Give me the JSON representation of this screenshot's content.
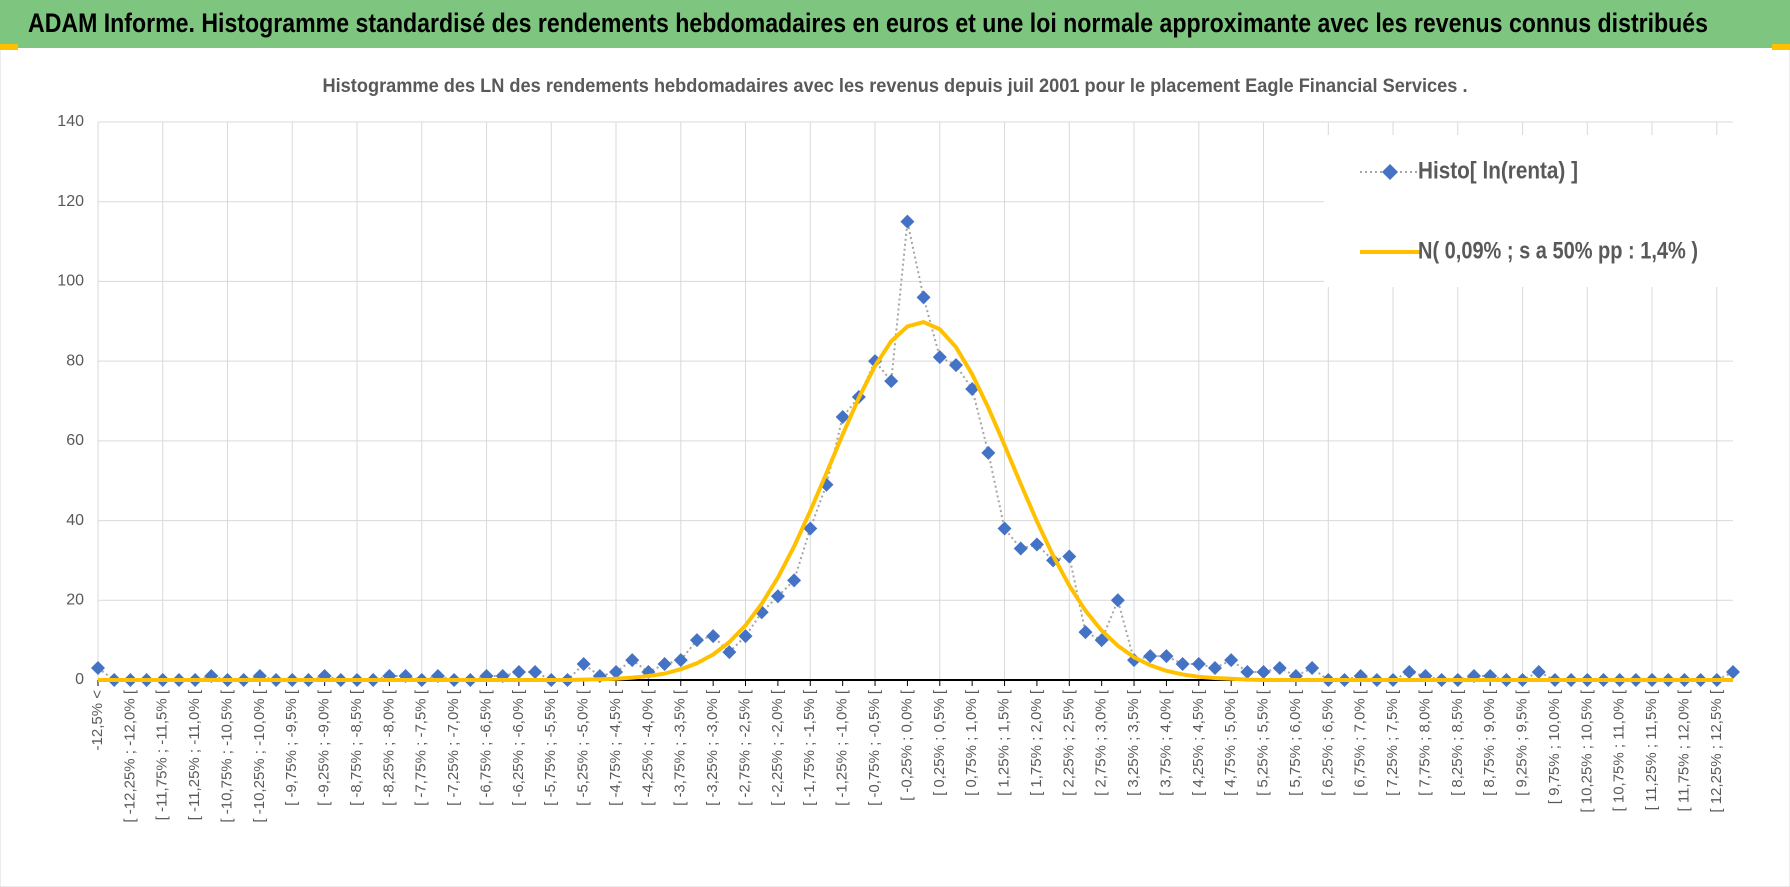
{
  "header": {
    "title": "ADAM Informe. Histogramme standardisé des rendements hebdomadaires en euros et une loi normale approximante avec les revenus connus distribués"
  },
  "chart_data": {
    "type": "line",
    "title": "Histogramme des LN des rendements hebdomadaires avec les revenus depuis juil 2001 pour le placement Eagle Financial Services .",
    "categories": [
      "-12,5% <",
      null,
      "[ -12,25% ; -12,0% [",
      null,
      "[ -11,75% ; -11,5% [",
      null,
      "[ -11,25% ; -11,0% [",
      null,
      "[ -10,75% ; -10,5% [",
      null,
      "[ -10,25% ; -10,0% [",
      null,
      "[ -9,75% ; -9,5% [",
      null,
      "[ -9,25% ; -9,0% [",
      null,
      "[ -8,75% ; -8,5% [",
      null,
      "[ -8,25% ; -8,0% [",
      null,
      "[ -7,75% ; -7,5% [",
      null,
      "[ -7,25% ; -7,0% [",
      null,
      "[ -6,75% ; -6,5% [",
      null,
      "[ -6,25% ; -6,0% [",
      null,
      "[ -5,75% ; -5,5% [",
      null,
      "[ -5,25% ; -5,0% [",
      null,
      "[ -4,75% ; -4,5% [",
      null,
      "[ -4,25% ; -4,0% [",
      null,
      "[ -3,75% ; -3,5% [",
      null,
      "[ -3,25% ; -3,0% [",
      null,
      "[ -2,75% ; -2,5% [",
      null,
      "[ -2,25% ; -2,0% [",
      null,
      "[ -1,75% ; -1,5% [",
      null,
      "[ -1,25% ; -1,0% [",
      null,
      "[ -0,75% ; -0,5% [",
      null,
      "[ -0,25% ; 0,0% [",
      null,
      "[ 0,25% ; 0,5% [",
      null,
      "[ 0,75% ; 1,0% [",
      null,
      "[ 1,25% ; 1,5% [",
      null,
      "[ 1,75% ; 2,0% [",
      null,
      "[ 2,25% ; 2,5% [",
      null,
      "[ 2,75% ; 3,0% [",
      null,
      "[ 3,25% ; 3,5% [",
      null,
      "[ 3,75% ; 4,0% [",
      null,
      "[ 4,25% ; 4,5% [",
      null,
      "[ 4,75% ; 5,0% [",
      null,
      "[ 5,25% ; 5,5% [",
      null,
      "[ 5,75% ; 6,0% [",
      null,
      "[ 6,25% ; 6,5% [",
      null,
      "[ 6,75% ; 7,0% [",
      null,
      "[ 7,25% ; 7,5% [",
      null,
      "[ 7,75% ; 8,0% [",
      null,
      "[ 8,25% ; 8,5% [",
      null,
      "[ 8,75% ; 9,0% [",
      null,
      "[ 9,25% ; 9,5% [",
      null,
      "[ 9,75% ; 10,0% [",
      null,
      "[ 10,25% ; 10,5% [",
      null,
      "[ 10,75% ; 11,0% [",
      null,
      "[ 11,25% ; 11,5% [",
      null,
      "[ 11,75% ; 12,0% [",
      null,
      "[ 12,25% ; 12,5% [",
      null
    ],
    "series": [
      {
        "name": "Histo[ ln(renta) ]",
        "color": "#4472c4",
        "line_color": "#a5a5a5",
        "values": [
          3,
          0,
          0,
          0,
          0,
          0,
          0,
          1,
          0,
          0,
          1,
          0,
          0,
          0,
          1,
          0,
          0,
          0,
          1,
          1,
          0,
          1,
          0,
          0,
          1,
          1,
          2,
          2,
          0,
          0,
          4,
          1,
          2,
          5,
          2,
          4,
          5,
          10,
          11,
          7,
          11,
          17,
          21,
          25,
          38,
          49,
          66,
          71,
          80,
          75,
          115,
          96,
          81,
          79,
          73,
          57,
          38,
          33,
          34,
          30,
          31,
          12,
          10,
          20,
          5,
          6,
          6,
          4,
          4,
          3,
          5,
          2,
          2,
          3,
          1,
          3,
          0,
          0,
          1,
          0,
          0,
          2,
          1,
          0,
          0,
          1,
          1,
          0,
          0,
          2,
          0,
          0,
          0,
          0,
          0,
          0,
          0,
          0,
          0,
          0,
          0,
          2
        ]
      },
      {
        "name": "N( 0,09% ; s a 50% pp : 1,4% )",
        "color": "#ffc000",
        "values": [
          0,
          0,
          0,
          0,
          0,
          0,
          0,
          0,
          0,
          0,
          0,
          0,
          0,
          0,
          0,
          0,
          0,
          0,
          0,
          0,
          0,
          0,
          0,
          0,
          0,
          0,
          0,
          0,
          0,
          0,
          0.1,
          0.2,
          0.3,
          0.6,
          1.0,
          1.6,
          2.7,
          4.2,
          6.4,
          9.5,
          13.7,
          19.1,
          25.7,
          33.5,
          42.4,
          51.9,
          61.6,
          70.8,
          78.8,
          85.0,
          88.7,
          89.8,
          88.0,
          83.5,
          76.7,
          68.3,
          58.9,
          49.2,
          39.8,
          31.2,
          23.7,
          17.4,
          12.4,
          8.6,
          5.7,
          3.7,
          2.3,
          1.4,
          0.8,
          0.5,
          0.3,
          0.1,
          0,
          0,
          0,
          0,
          0,
          0,
          0,
          0,
          0,
          0,
          0,
          0,
          0,
          0,
          0,
          0,
          0,
          0,
          0,
          0,
          0,
          0,
          0,
          0,
          0,
          0,
          0,
          0,
          0,
          0
        ]
      }
    ],
    "ylim": [
      0,
      140
    ],
    "yticks": [
      0,
      20,
      40,
      60,
      80,
      100,
      120,
      140
    ],
    "grid": true,
    "legend": "top-right"
  }
}
